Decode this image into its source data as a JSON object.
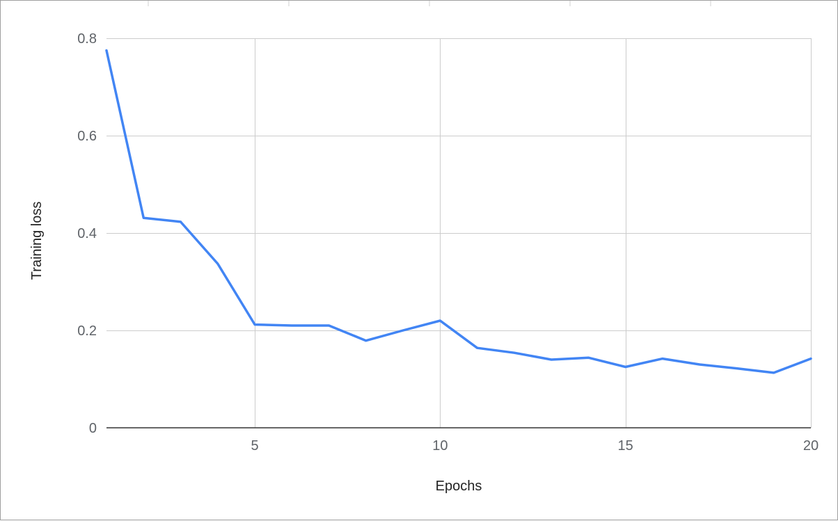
{
  "chart_data": {
    "type": "line",
    "title": "",
    "xlabel": "Epochs",
    "ylabel": "Training loss",
    "xlim": [
      1,
      20
    ],
    "ylim": [
      0,
      0.8
    ],
    "x_ticks": [
      5,
      10,
      15,
      20
    ],
    "y_ticks": [
      0,
      0.2,
      0.4,
      0.6,
      0.8
    ],
    "x_tick_labels": [
      "5",
      "10",
      "15",
      "20"
    ],
    "y_tick_labels": [
      "0",
      "0.2",
      "0.4",
      "0.6",
      "0.8"
    ],
    "grid": true,
    "legend": "none",
    "series": [
      {
        "color": "#4285f4",
        "x": [
          1,
          2,
          3,
          4,
          5,
          6,
          7,
          8,
          9,
          10,
          11,
          12,
          13,
          14,
          15,
          16,
          17,
          18,
          19,
          20
        ],
        "y": [
          0.775,
          0.431,
          0.423,
          0.337,
          0.212,
          0.21,
          0.21,
          0.179,
          0.2,
          0.22,
          0.164,
          0.154,
          0.14,
          0.144,
          0.125,
          0.142,
          0.13,
          0.122,
          0.113,
          0.142
        ]
      }
    ]
  }
}
